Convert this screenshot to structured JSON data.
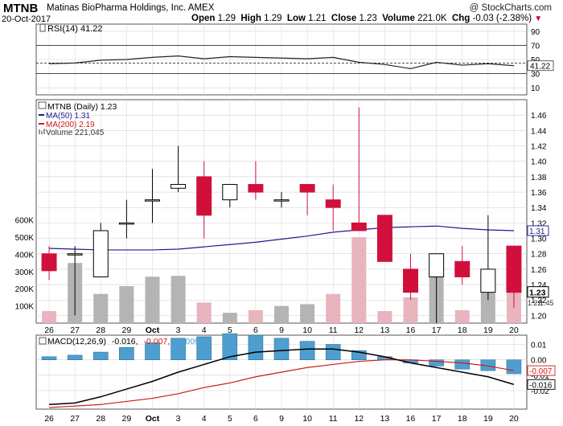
{
  "header": {
    "symbol": "MTNB",
    "company": "Matinas BioPharma Holdings, Inc.",
    "exchange": "AMEX",
    "date": "20-Oct-2017",
    "watermark": "@ StockCharts.com",
    "open_label": "Open",
    "open": "1.29",
    "high_label": "High",
    "high": "1.29",
    "low_label": "Low",
    "low": "1.21",
    "close_label": "Close",
    "close": "1.23",
    "volume_label": "Volume",
    "volume": "221.0K",
    "chg_label": "Chg",
    "chg": "-0.03 (-2.38%)"
  },
  "colors": {
    "up": "#ffffff",
    "down": "#d0103a",
    "ma50": "#1c1c8c",
    "ma200": "#cc1a1a",
    "vol_up": "#b4b4b4",
    "vol_down": "#e8b4be",
    "macd_hist": "#4e9fcf",
    "grid": "#d3d3d3"
  },
  "chart_data": [
    {
      "type": "line",
      "panel": "rsi",
      "legend": "RSI(14) 41.22",
      "ylim": [
        0,
        100
      ],
      "ticks": [
        10,
        30,
        50,
        70,
        90
      ],
      "ref_lines": [
        30,
        45,
        70
      ],
      "current_label": "41.22",
      "values": [
        44,
        45,
        49,
        50,
        53,
        55,
        51,
        54,
        53,
        52,
        51,
        53,
        46,
        43,
        37,
        46,
        42,
        44,
        41.22
      ]
    },
    {
      "type": "candlestick",
      "panel": "price",
      "legend": "MTNB (Daily) 1.23",
      "ma50_legend": "MA(50) 1.31",
      "ma200_legend": "MA(200) 2.19",
      "volume_legend": "Volume 221,045",
      "categories": [
        "26",
        "27",
        "28",
        "29",
        "Oct",
        "3",
        "4",
        "5",
        "6",
        "9",
        "10",
        "11",
        "12",
        "13",
        "16",
        "17",
        "18",
        "19",
        "20"
      ],
      "ohlc": [
        [
          1.28,
          1.29,
          1.246,
          1.258
        ],
        [
          1.28,
          1.29,
          1.2,
          1.28
        ],
        [
          1.25,
          1.32,
          1.25,
          1.31
        ],
        [
          1.32,
          1.35,
          1.3,
          1.32
        ],
        [
          1.35,
          1.39,
          1.32,
          1.35
        ],
        [
          1.365,
          1.42,
          1.36,
          1.37
        ],
        [
          1.38,
          1.4,
          1.3,
          1.33
        ],
        [
          1.35,
          1.37,
          1.34,
          1.37
        ],
        [
          1.37,
          1.4,
          1.35,
          1.36
        ],
        [
          1.35,
          1.36,
          1.34,
          1.35
        ],
        [
          1.37,
          1.37,
          1.33,
          1.36
        ],
        [
          1.35,
          1.37,
          1.31,
          1.34
        ],
        [
          1.32,
          1.47,
          1.31,
          1.31
        ],
        [
          1.33,
          1.33,
          1.27,
          1.27
        ],
        [
          1.26,
          1.28,
          1.22,
          1.23
        ],
        [
          1.25,
          1.28,
          1.19,
          1.28
        ],
        [
          1.27,
          1.29,
          1.24,
          1.25
        ],
        [
          1.23,
          1.33,
          1.22,
          1.26
        ],
        [
          1.29,
          1.29,
          1.21,
          1.23
        ]
      ],
      "ma50": [
        1.287,
        1.286,
        1.285,
        1.285,
        1.285,
        1.286,
        1.289,
        1.292,
        1.295,
        1.299,
        1.303,
        1.308,
        1.311,
        1.314,
        1.315,
        1.316,
        1.313,
        1.311,
        1.31
      ],
      "ma200_current": "2.19",
      "ylim": [
        1.19,
        1.48
      ],
      "price_ticks": [
        1.2,
        1.22,
        1.24,
        1.26,
        1.28,
        1.3,
        1.32,
        1.34,
        1.36,
        1.38,
        1.4,
        1.42,
        1.44,
        1.46
      ],
      "price_tick_labels": [
        "1.20",
        "1.22",
        "1.24",
        "1.26",
        "1.28",
        "1.30",
        "1.32",
        "1.34",
        "1.36",
        "1.38",
        "1.40",
        "1.42",
        "1.44",
        "1.46"
      ],
      "last_price_labels": {
        "ma50": "1.31",
        "close": "1.23",
        "low_overlap": "1.22",
        "vol_overlap": "1.45"
      },
      "volume": [
        70000,
        350000,
        170000,
        215000,
        270000,
        275000,
        120000,
        60000,
        75000,
        100000,
        110000,
        170000,
        500000,
        70000,
        150000,
        350000,
        75000,
        210000,
        221045
      ],
      "volume_up": [
        false,
        true,
        true,
        true,
        true,
        true,
        false,
        true,
        false,
        true,
        true,
        false,
        false,
        false,
        false,
        true,
        false,
        true,
        false
      ],
      "volume_ticks": [
        100000,
        200000,
        300000,
        400000,
        500000,
        600000
      ],
      "volume_tick_labels": [
        "100K",
        "200K",
        "300K",
        "400K",
        "500K",
        "600K"
      ],
      "volume_ylim": [
        0,
        1300000
      ]
    },
    {
      "type": "line",
      "panel": "macd",
      "legend_prefix": "MACD(12,26,9)",
      "legend_macd": "-0.016,",
      "legend_signal": "-0.007,",
      "legend_hist": "-0.009",
      "ylim": [
        -0.032,
        0.016
      ],
      "ticks": [
        0.01,
        0.0,
        -0.01,
        -0.02
      ],
      "tick_labels": [
        "0.01",
        "0.00",
        "-0.01",
        "-0.02"
      ],
      "macd": [
        -0.029,
        -0.028,
        -0.024,
        -0.019,
        -0.014,
        -0.008,
        -0.003,
        0.002,
        0.005,
        0.006,
        0.007,
        0.007,
        0.005,
        0.002,
        -0.002,
        -0.005,
        -0.008,
        -0.011,
        -0.016
      ],
      "signal": [
        -0.031,
        -0.03,
        -0.029,
        -0.027,
        -0.025,
        -0.022,
        -0.018,
        -0.015,
        -0.011,
        -0.008,
        -0.005,
        -0.003,
        -0.001,
        0.0,
        0.0,
        -0.001,
        -0.002,
        -0.004,
        -0.007
      ],
      "histogram": [
        0.002,
        0.003,
        0.005,
        0.008,
        0.011,
        0.014,
        0.015,
        0.017,
        0.016,
        0.014,
        0.012,
        0.01,
        0.006,
        0.002,
        -0.002,
        -0.004,
        -0.006,
        -0.007,
        -0.009
      ],
      "current_labels": {
        "signal": "-0.007",
        "macd": "-0.016"
      }
    }
  ]
}
